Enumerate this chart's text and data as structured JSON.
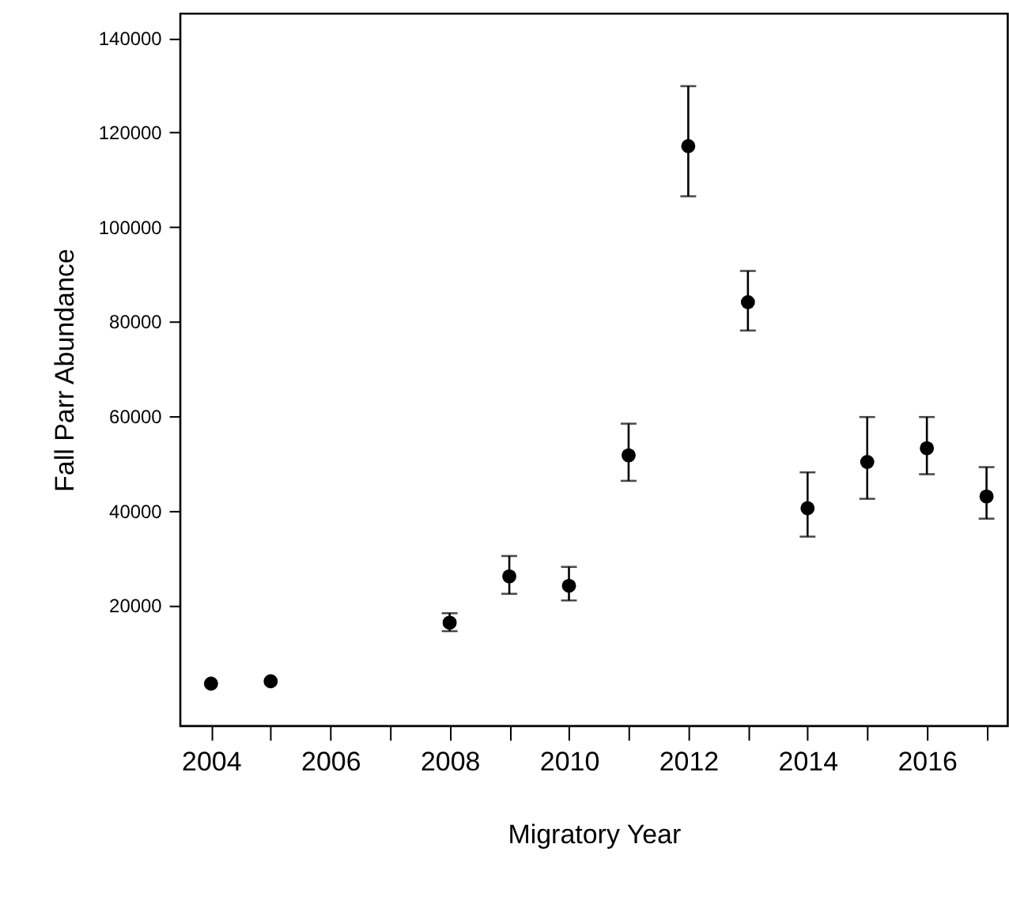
{
  "chart_data": {
    "type": "scatter",
    "xlabel": "Migratory Year",
    "ylabel": "Fall Parr Abundance",
    "x": [
      2004,
      2005,
      2008,
      2009,
      2010,
      2011,
      2012,
      2013,
      2014,
      2015,
      2016,
      2017
    ],
    "values": [
      3400,
      3900,
      16300,
      26100,
      24100,
      51700,
      117100,
      84100,
      40500,
      50300,
      53200,
      43000
    ],
    "errors": [
      null,
      null,
      [
        14500,
        18300
      ],
      [
        22400,
        30400
      ],
      [
        21000,
        28100
      ],
      [
        46300,
        58400
      ],
      [
        106500,
        129800
      ],
      [
        78100,
        90700
      ],
      [
        34500,
        48100
      ],
      [
        42500,
        59800
      ],
      [
        47700,
        59800
      ],
      [
        38300,
        49200
      ]
    ],
    "color": "#000000",
    "marker": "circle",
    "grid": false,
    "xlim": [
      2003.48,
      2017.35
    ],
    "xticks": [
      2004,
      {
        "value": 2005,
        "label": null
      },
      2006,
      {
        "value": 2007,
        "label": null
      },
      2008,
      {
        "value": 2009,
        "label": null
      },
      2010,
      {
        "value": 2011,
        "label": null
      },
      2012,
      {
        "value": 2013,
        "label": null
      },
      2014,
      {
        "value": 2015,
        "label": null
      },
      2016,
      {
        "value": 2017,
        "label": null
      }
    ],
    "ylim": [
      -5500,
      145200
    ],
    "yticks": [
      20000,
      40000,
      60000,
      80000,
      100000,
      120000,
      140000
    ]
  }
}
